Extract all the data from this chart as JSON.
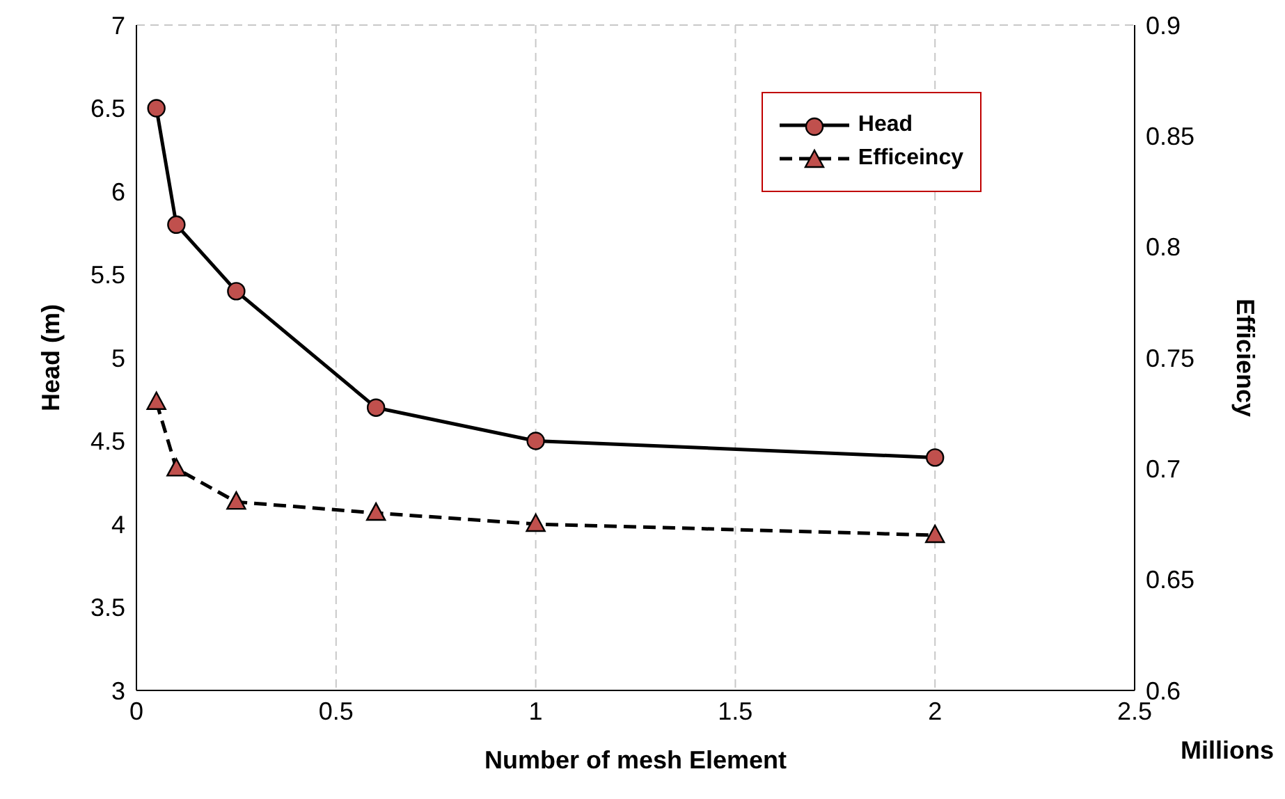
{
  "chart_data": {
    "type": "line",
    "xlabel": "Number of mesh Element",
    "ylabel": "Head (m)",
    "y2label": "Efficiency",
    "annotations": [
      "Millions"
    ],
    "x": [
      0.05,
      0.1,
      0.25,
      0.6,
      1,
      2
    ],
    "series": [
      {
        "name": "Head",
        "color": "#000000",
        "marker": "circle",
        "line_style": "solid",
        "values": [
          6.5,
          5.8,
          5.4,
          4.7,
          4.5,
          4.4
        ]
      },
      {
        "name": "Efficeincy",
        "color": "#000000",
        "marker": "triangle",
        "line_style": "dashed",
        "axis": "y2",
        "values": [
          0.73,
          0.7,
          0.685,
          0.68,
          0.675,
          0.67
        ]
      }
    ],
    "xlim": [
      0,
      2.5
    ],
    "xticks": [
      0,
      0.5,
      1,
      1.5,
      2,
      2.5
    ],
    "ylim": [
      3,
      7
    ],
    "yticks": [
      3,
      3.5,
      4,
      4.5,
      5,
      5.5,
      6,
      6.5,
      7
    ],
    "y2lim": [
      0.6,
      0.9
    ],
    "y2ticks": [
      0.6,
      0.65,
      0.7,
      0.75,
      0.8,
      0.85,
      0.9
    ],
    "grid": true,
    "legend": "top right"
  }
}
